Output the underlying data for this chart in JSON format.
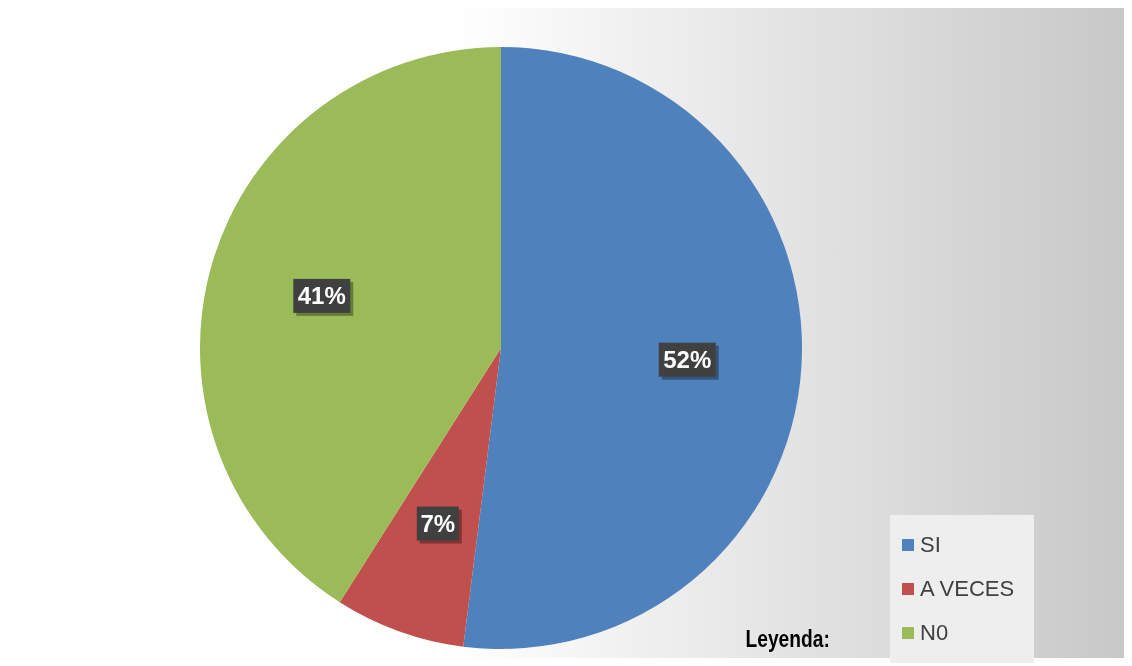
{
  "chart_data": {
    "type": "pie",
    "categories": [
      "SI",
      "A VECES",
      "N0"
    ],
    "values": [
      52,
      7,
      41
    ],
    "colors": [
      "#4f81bd",
      "#c0504d",
      "#9bbb59"
    ],
    "value_labels": [
      "52%",
      "7%",
      "41%"
    ],
    "legend": "bottom right",
    "legend_title": "Leyenda:"
  }
}
